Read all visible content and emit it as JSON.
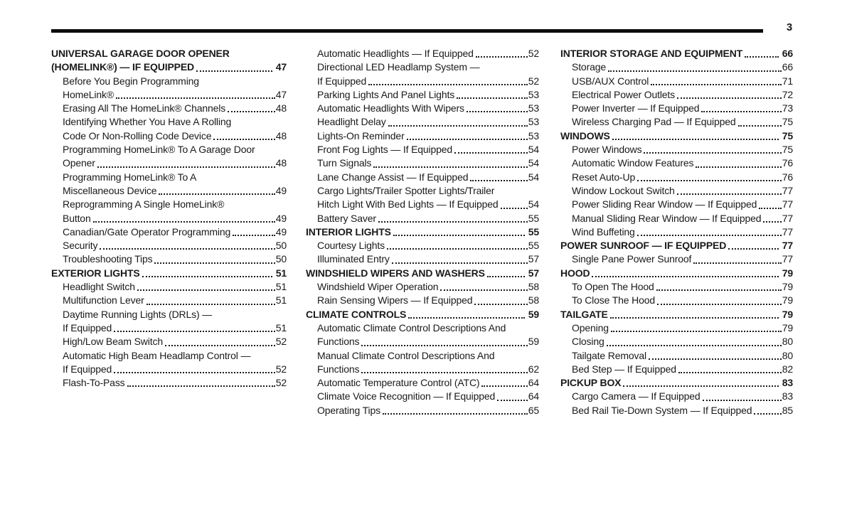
{
  "header": {
    "page_number": "3"
  },
  "toc": {
    "columns": [
      {
        "entries": [
          {
            "bold": true,
            "lines": [
              "UNIVERSAL GARAGE DOOR OPENER",
              "(HOMELINK®) — IF EQUIPPED"
            ],
            "page": "47"
          },
          {
            "bold": false,
            "lines": [
              "Before You Begin Programming",
              "HomeLink®"
            ],
            "page": "47"
          },
          {
            "bold": false,
            "lines": [
              "Erasing All The HomeLink® Channels"
            ],
            "page": "48"
          },
          {
            "bold": false,
            "lines": [
              "Identifying Whether You Have A Rolling",
              "Code Or Non-Rolling Code Device"
            ],
            "page": "48"
          },
          {
            "bold": false,
            "lines": [
              "Programming HomeLink® To A Garage Door",
              "Opener"
            ],
            "page": "48"
          },
          {
            "bold": false,
            "lines": [
              "Programming HomeLink® To A",
              "Miscellaneous Device"
            ],
            "page": "49"
          },
          {
            "bold": false,
            "lines": [
              "Reprogramming A Single HomeLink®",
              "Button"
            ],
            "page": "49"
          },
          {
            "bold": false,
            "lines": [
              "Canadian/Gate Operator Programming"
            ],
            "page": "49"
          },
          {
            "bold": false,
            "lines": [
              "Security"
            ],
            "page": "50"
          },
          {
            "bold": false,
            "lines": [
              "Troubleshooting Tips"
            ],
            "page": "50"
          },
          {
            "bold": true,
            "lines": [
              "EXTERIOR LIGHTS"
            ],
            "page": "51"
          },
          {
            "bold": false,
            "lines": [
              "Headlight Switch"
            ],
            "page": "51"
          },
          {
            "bold": false,
            "lines": [
              "Multifunction Lever"
            ],
            "page": "51"
          },
          {
            "bold": false,
            "lines": [
              "Daytime Running Lights (DRLs) —",
              "If Equipped"
            ],
            "page": "51"
          },
          {
            "bold": false,
            "lines": [
              "High/Low Beam Switch"
            ],
            "page": "52"
          },
          {
            "bold": false,
            "lines": [
              "Automatic High Beam Headlamp Control —",
              "If Equipped"
            ],
            "page": "52"
          },
          {
            "bold": false,
            "lines": [
              "Flash-To-Pass"
            ],
            "page": "52"
          }
        ]
      },
      {
        "entries": [
          {
            "bold": false,
            "lines": [
              "Automatic Headlights — If Equipped"
            ],
            "page": "52"
          },
          {
            "bold": false,
            "lines": [
              "Directional LED Headlamp System —",
              "If Equipped"
            ],
            "page": "52"
          },
          {
            "bold": false,
            "lines": [
              "Parking Lights And Panel Lights"
            ],
            "page": "53"
          },
          {
            "bold": false,
            "lines": [
              "Automatic Headlights With Wipers"
            ],
            "page": "53"
          },
          {
            "bold": false,
            "lines": [
              "Headlight Delay"
            ],
            "page": "53"
          },
          {
            "bold": false,
            "lines": [
              "Lights-On Reminder"
            ],
            "page": "53"
          },
          {
            "bold": false,
            "lines": [
              "Front Fog Lights — If Equipped"
            ],
            "page": "54"
          },
          {
            "bold": false,
            "lines": [
              "Turn Signals"
            ],
            "page": "54"
          },
          {
            "bold": false,
            "lines": [
              "Lane Change Assist — If Equipped"
            ],
            "page": "54"
          },
          {
            "bold": false,
            "lines": [
              "Cargo Lights/Trailer Spotter Lights/Trailer",
              "Hitch Light With Bed Lights — If Equipped"
            ],
            "page": "54"
          },
          {
            "bold": false,
            "lines": [
              "Battery Saver"
            ],
            "page": "55"
          },
          {
            "bold": true,
            "lines": [
              "INTERIOR LIGHTS"
            ],
            "page": "55"
          },
          {
            "bold": false,
            "lines": [
              "Courtesy Lights"
            ],
            "page": "55"
          },
          {
            "bold": false,
            "lines": [
              "Illuminated Entry"
            ],
            "page": "57"
          },
          {
            "bold": true,
            "lines": [
              "WINDSHIELD WIPERS AND WASHERS"
            ],
            "page": "57"
          },
          {
            "bold": false,
            "lines": [
              "Windshield Wiper Operation"
            ],
            "page": "58"
          },
          {
            "bold": false,
            "lines": [
              "Rain Sensing Wipers — If Equipped"
            ],
            "page": "58"
          },
          {
            "bold": true,
            "lines": [
              "CLIMATE CONTROLS"
            ],
            "page": "59"
          },
          {
            "bold": false,
            "lines": [
              "Automatic Climate Control Descriptions And",
              "Functions"
            ],
            "page": "59"
          },
          {
            "bold": false,
            "lines": [
              "Manual Climate Control Descriptions And",
              "Functions"
            ],
            "page": "62"
          },
          {
            "bold": false,
            "lines": [
              "Automatic Temperature Control (ATC)"
            ],
            "page": "64"
          },
          {
            "bold": false,
            "lines": [
              "Climate Voice Recognition — If Equipped"
            ],
            "page": "64"
          },
          {
            "bold": false,
            "lines": [
              "Operating Tips"
            ],
            "page": "65"
          }
        ]
      },
      {
        "entries": [
          {
            "bold": true,
            "lines": [
              "INTERIOR STORAGE AND EQUIPMENT"
            ],
            "page": "66"
          },
          {
            "bold": false,
            "lines": [
              "Storage"
            ],
            "page": "66"
          },
          {
            "bold": false,
            "lines": [
              "USB/AUX Control"
            ],
            "page": "71"
          },
          {
            "bold": false,
            "lines": [
              "Electrical Power Outlets"
            ],
            "page": "72"
          },
          {
            "bold": false,
            "lines": [
              "Power Inverter — If Equipped"
            ],
            "page": "73"
          },
          {
            "bold": false,
            "lines": [
              "Wireless Charging Pad — If Equipped"
            ],
            "page": "75"
          },
          {
            "bold": true,
            "lines": [
              "WINDOWS"
            ],
            "page": "75"
          },
          {
            "bold": false,
            "lines": [
              "Power Windows"
            ],
            "page": "75"
          },
          {
            "bold": false,
            "lines": [
              "Automatic Window Features"
            ],
            "page": "76"
          },
          {
            "bold": false,
            "lines": [
              "Reset Auto-Up"
            ],
            "page": "76"
          },
          {
            "bold": false,
            "lines": [
              "Window Lockout Switch"
            ],
            "page": "77"
          },
          {
            "bold": false,
            "lines": [
              "Power Sliding Rear Window — If Equipped"
            ],
            "page": "77"
          },
          {
            "bold": false,
            "lines": [
              "Manual Sliding Rear Window — If Equipped"
            ],
            "page": "77"
          },
          {
            "bold": false,
            "lines": [
              "Wind Buffeting"
            ],
            "page": "77"
          },
          {
            "bold": true,
            "lines": [
              "POWER SUNROOF — IF EQUIPPED"
            ],
            "page": "77"
          },
          {
            "bold": false,
            "lines": [
              "Single Pane Power Sunroof"
            ],
            "page": "77"
          },
          {
            "bold": true,
            "lines": [
              "HOOD"
            ],
            "page": "79"
          },
          {
            "bold": false,
            "lines": [
              "To Open The Hood"
            ],
            "page": "79"
          },
          {
            "bold": false,
            "lines": [
              "To Close The Hood"
            ],
            "page": "79"
          },
          {
            "bold": true,
            "lines": [
              "TAILGATE"
            ],
            "page": "79"
          },
          {
            "bold": false,
            "lines": [
              "Opening"
            ],
            "page": "79"
          },
          {
            "bold": false,
            "lines": [
              "Closing"
            ],
            "page": "80"
          },
          {
            "bold": false,
            "lines": [
              "Tailgate Removal"
            ],
            "page": "80"
          },
          {
            "bold": false,
            "lines": [
              "Bed Step — If Equipped"
            ],
            "page": "82"
          },
          {
            "bold": true,
            "lines": [
              "PICKUP BOX"
            ],
            "page": "83"
          },
          {
            "bold": false,
            "lines": [
              "Cargo Camera — If Equipped"
            ],
            "page": "83"
          },
          {
            "bold": false,
            "lines": [
              "Bed Rail Tie-Down System — If Equipped"
            ],
            "page": "85"
          }
        ]
      }
    ]
  }
}
